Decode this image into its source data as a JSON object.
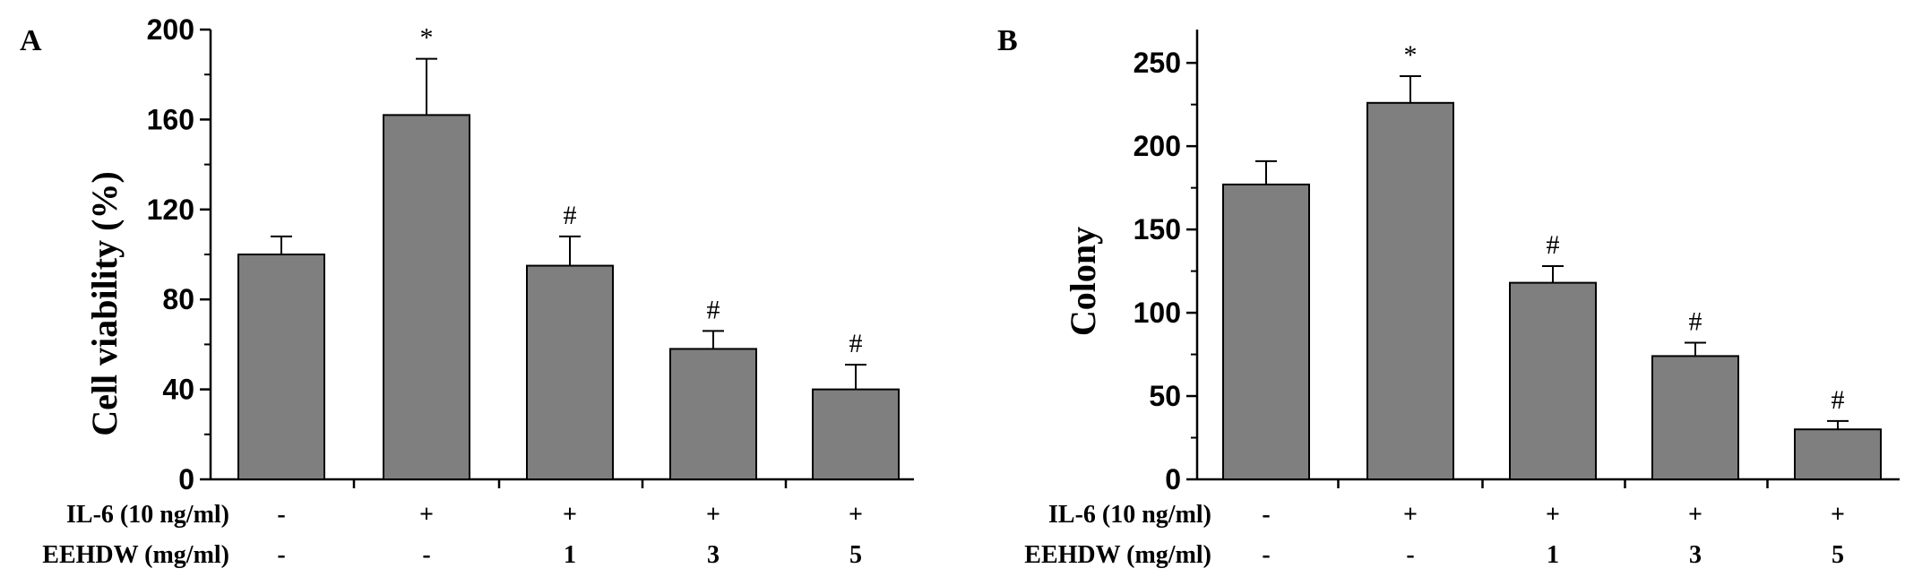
{
  "colors": {
    "bar_fill": "#7f7f7f",
    "stroke": "#000000",
    "background": "#ffffff"
  },
  "treatments": {
    "row_labels": [
      "IL-6 (10 ng/ml)",
      "EEHDW (mg/ml)"
    ],
    "il6": [
      "-",
      "+",
      "+",
      "+",
      "+"
    ],
    "eehdw": [
      "-",
      "-",
      "1",
      "3",
      "5"
    ]
  },
  "chart_data": [
    {
      "type": "bar",
      "panel_label": "A",
      "ylabel": "Cell viability (%)",
      "ylim": [
        0,
        200
      ],
      "yticks": [
        0,
        40,
        80,
        120,
        160,
        200
      ],
      "categories": [
        "1",
        "2",
        "3",
        "4",
        "5"
      ],
      "values": [
        100,
        162,
        95,
        58,
        40
      ],
      "errors": [
        8,
        25,
        13,
        8,
        11
      ],
      "annotations": [
        "",
        "*",
        "#",
        "#",
        "#"
      ],
      "grid": false
    },
    {
      "type": "bar",
      "panel_label": "B",
      "ylabel": "Colony",
      "ylim": [
        0,
        270
      ],
      "yticks": [
        0,
        50,
        100,
        150,
        200,
        250
      ],
      "categories": [
        "1",
        "2",
        "3",
        "4",
        "5"
      ],
      "values": [
        177,
        226,
        118,
        74,
        30
      ],
      "errors": [
        14,
        16,
        10,
        8,
        5
      ],
      "annotations": [
        "",
        "*",
        "#",
        "#",
        "#"
      ],
      "grid": false
    }
  ]
}
